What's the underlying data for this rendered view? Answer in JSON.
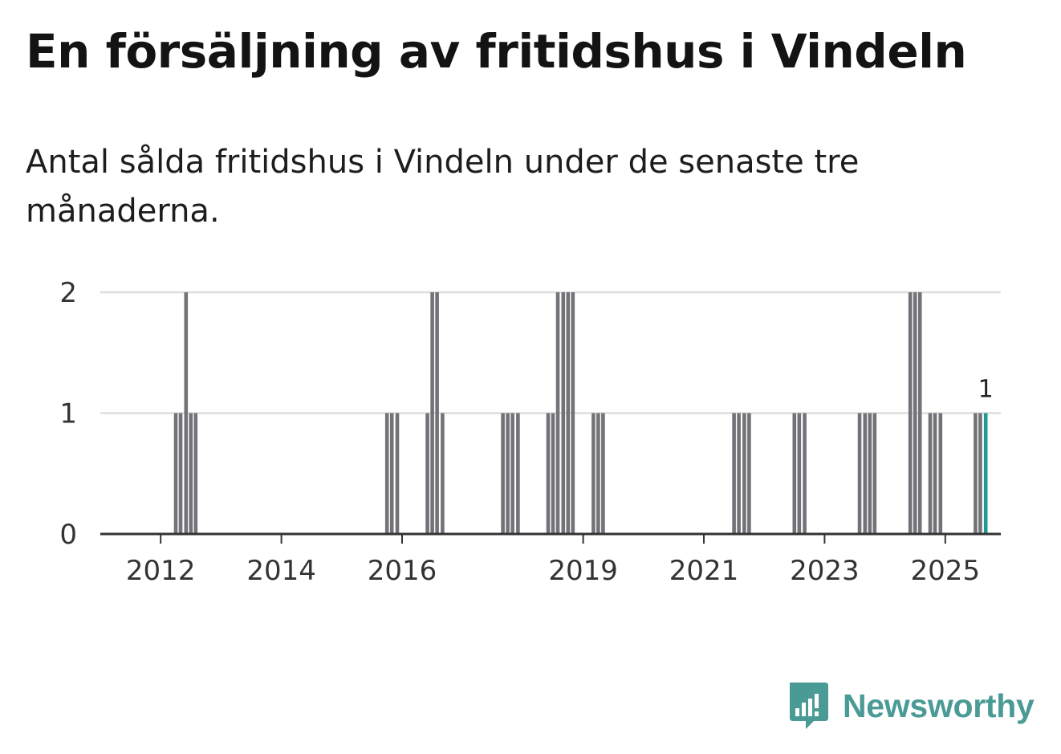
{
  "title": "En försäljning av fritidshus i Vindeln",
  "subtitle": "Antal sålda fritidshus i Vindeln under de senaste tre månaderna.",
  "brand": {
    "name": "Newsworthy",
    "color": "#4a9a96"
  },
  "colors": {
    "bar": "#737278",
    "highlight": "#1f9a92",
    "grid": "#dddddd",
    "axis": "#333333"
  },
  "chart_data": {
    "type": "bar",
    "title": "En försäljning av fritidshus i Vindeln",
    "xlabel": "",
    "ylabel": "",
    "ylim": [
      0,
      2
    ],
    "yticks": [
      0,
      1,
      2
    ],
    "x_range": [
      2011.0,
      2025.92
    ],
    "xticks": [
      {
        "value": 2012,
        "label": "2012"
      },
      {
        "value": 2014,
        "label": "2014"
      },
      {
        "value": 2016,
        "label": "2016"
      },
      {
        "value": 2019,
        "label": "2019"
      },
      {
        "value": 2021,
        "label": "2021"
      },
      {
        "value": 2023,
        "label": "2023"
      },
      {
        "value": 2025,
        "label": "2025"
      }
    ],
    "series": [
      {
        "name": "Antal sålda fritidshus",
        "points": [
          {
            "x": 2012.25,
            "y": 1
          },
          {
            "x": 2012.33,
            "y": 1
          },
          {
            "x": 2012.42,
            "y": 2
          },
          {
            "x": 2012.5,
            "y": 1
          },
          {
            "x": 2012.58,
            "y": 1
          },
          {
            "x": 2015.75,
            "y": 1
          },
          {
            "x": 2015.83,
            "y": 1
          },
          {
            "x": 2015.92,
            "y": 1
          },
          {
            "x": 2016.42,
            "y": 1
          },
          {
            "x": 2016.5,
            "y": 2
          },
          {
            "x": 2016.58,
            "y": 2
          },
          {
            "x": 2016.67,
            "y": 1
          },
          {
            "x": 2017.67,
            "y": 1
          },
          {
            "x": 2017.75,
            "y": 1
          },
          {
            "x": 2017.83,
            "y": 1
          },
          {
            "x": 2017.92,
            "y": 1
          },
          {
            "x": 2018.42,
            "y": 1
          },
          {
            "x": 2018.5,
            "y": 1
          },
          {
            "x": 2018.58,
            "y": 2
          },
          {
            "x": 2018.67,
            "y": 2
          },
          {
            "x": 2018.75,
            "y": 2
          },
          {
            "x": 2018.83,
            "y": 2
          },
          {
            "x": 2019.17,
            "y": 1
          },
          {
            "x": 2019.25,
            "y": 1
          },
          {
            "x": 2019.33,
            "y": 1
          },
          {
            "x": 2021.5,
            "y": 1
          },
          {
            "x": 2021.58,
            "y": 1
          },
          {
            "x": 2021.67,
            "y": 1
          },
          {
            "x": 2021.75,
            "y": 1
          },
          {
            "x": 2022.5,
            "y": 1
          },
          {
            "x": 2022.58,
            "y": 1
          },
          {
            "x": 2022.67,
            "y": 1
          },
          {
            "x": 2023.58,
            "y": 1
          },
          {
            "x": 2023.67,
            "y": 1
          },
          {
            "x": 2023.75,
            "y": 1
          },
          {
            "x": 2023.83,
            "y": 1
          },
          {
            "x": 2024.42,
            "y": 2
          },
          {
            "x": 2024.5,
            "y": 2
          },
          {
            "x": 2024.58,
            "y": 2
          },
          {
            "x": 2024.75,
            "y": 1
          },
          {
            "x": 2024.83,
            "y": 1
          },
          {
            "x": 2024.92,
            "y": 1
          },
          {
            "x": 2025.5,
            "y": 1
          },
          {
            "x": 2025.58,
            "y": 1
          },
          {
            "x": 2025.67,
            "y": 1,
            "highlight": true,
            "label": "1"
          }
        ]
      }
    ]
  }
}
